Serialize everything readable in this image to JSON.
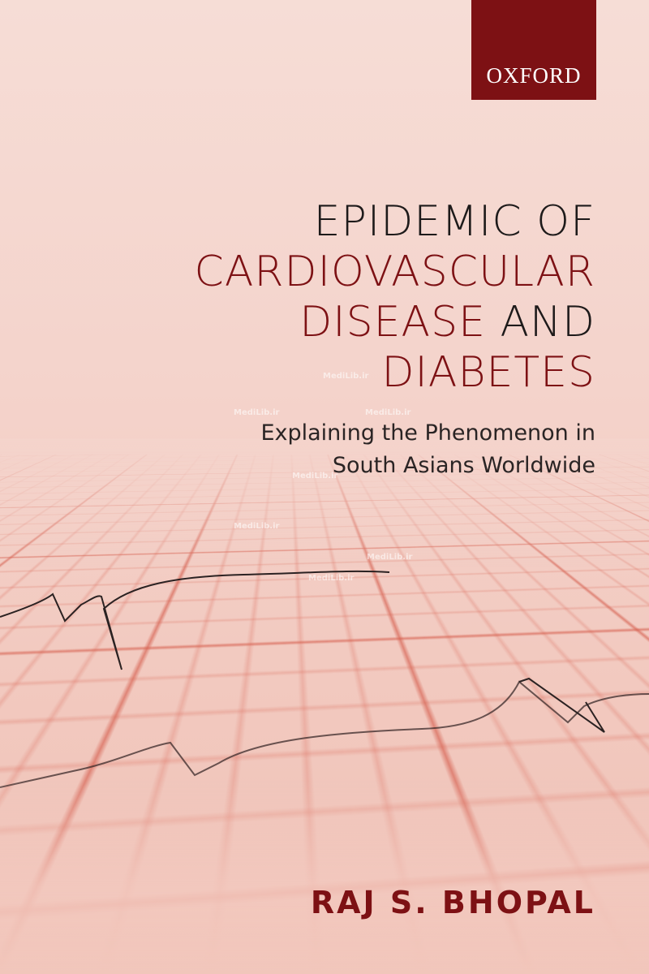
{
  "publisher": "OXFORD",
  "title": {
    "line1": "EPIDEMIC OF",
    "line2": "CARDIOVASCULAR",
    "line3a": "DISEASE",
    "line3b": "AND",
    "line4": "DIABETES"
  },
  "subtitle": {
    "line1": "Explaining the Phenomenon in",
    "line2": "South Asians Worldwide"
  },
  "author": "RAJ S. BHOPAL",
  "watermark": "MediLib.ir",
  "colors": {
    "accent": "#7d1114",
    "text": "#1d1a1a",
    "background": "#f4d3cb"
  }
}
